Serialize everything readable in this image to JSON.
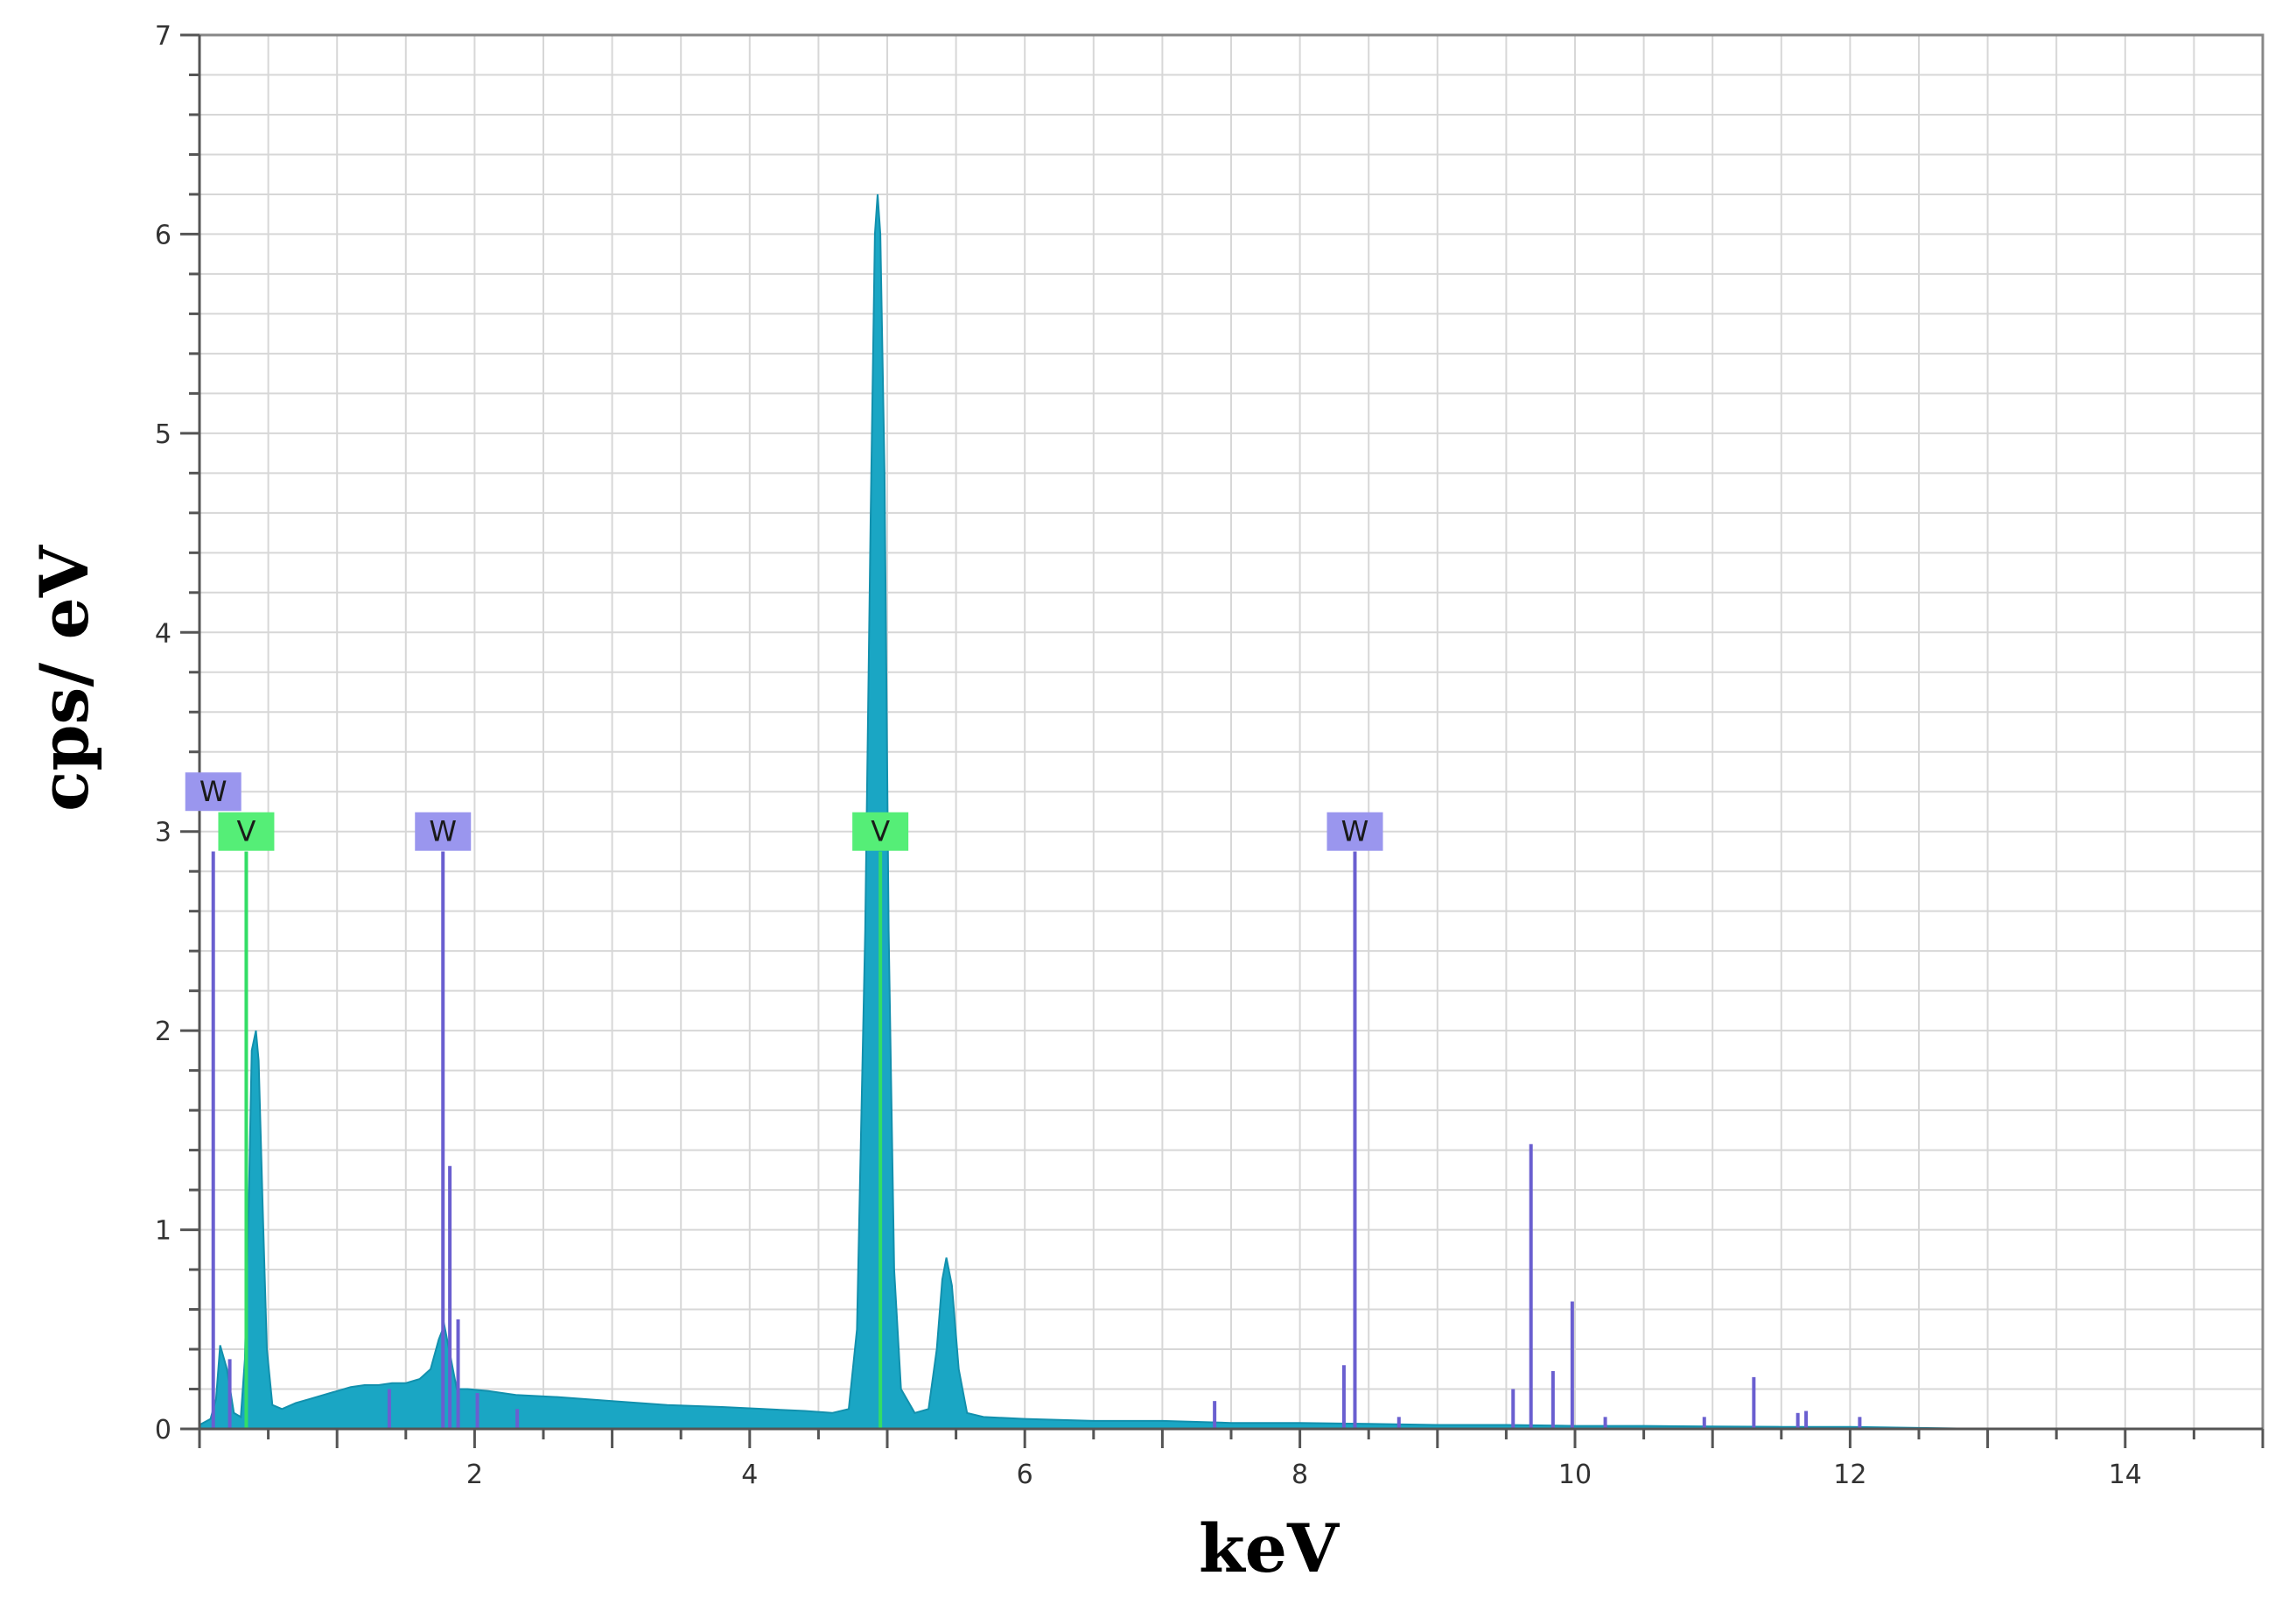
{
  "chart_data": {
    "type": "area",
    "xlabel": "keV",
    "ylabel": "cps/ eV",
    "xlim": [
      0,
      15
    ],
    "ylim": [
      0,
      7
    ],
    "x_ticks": [
      "2",
      "4",
      "6",
      "8",
      "10",
      "12",
      "14"
    ],
    "y_ticks": [
      "0",
      "1",
      "2",
      "3",
      "4",
      "5",
      "6",
      "7"
    ],
    "grid": true,
    "series": [
      {
        "fill_color": "#1aa6c4",
        "points": [
          [
            0.0,
            0.02
          ],
          [
            0.08,
            0.05
          ],
          [
            0.12,
            0.15
          ],
          [
            0.15,
            0.42
          ],
          [
            0.2,
            0.3
          ],
          [
            0.25,
            0.08
          ],
          [
            0.3,
            0.06
          ],
          [
            0.33,
            0.35
          ],
          [
            0.36,
            1.2
          ],
          [
            0.38,
            1.9
          ],
          [
            0.41,
            2.0
          ],
          [
            0.43,
            1.85
          ],
          [
            0.46,
            1.1
          ],
          [
            0.49,
            0.4
          ],
          [
            0.53,
            0.12
          ],
          [
            0.6,
            0.1
          ],
          [
            0.7,
            0.13
          ],
          [
            0.8,
            0.15
          ],
          [
            0.9,
            0.17
          ],
          [
            1.0,
            0.19
          ],
          [
            1.1,
            0.21
          ],
          [
            1.2,
            0.22
          ],
          [
            1.3,
            0.22
          ],
          [
            1.4,
            0.23
          ],
          [
            1.5,
            0.23
          ],
          [
            1.6,
            0.25
          ],
          [
            1.68,
            0.3
          ],
          [
            1.74,
            0.45
          ],
          [
            1.78,
            0.52
          ],
          [
            1.82,
            0.38
          ],
          [
            1.87,
            0.2
          ],
          [
            1.95,
            0.2
          ],
          [
            2.1,
            0.19
          ],
          [
            2.3,
            0.17
          ],
          [
            2.6,
            0.16
          ],
          [
            3.0,
            0.14
          ],
          [
            3.4,
            0.12
          ],
          [
            3.8,
            0.11
          ],
          [
            4.1,
            0.1
          ],
          [
            4.4,
            0.09
          ],
          [
            4.6,
            0.08
          ],
          [
            4.72,
            0.1
          ],
          [
            4.78,
            0.5
          ],
          [
            4.84,
            2.5
          ],
          [
            4.88,
            4.6
          ],
          [
            4.91,
            6.0
          ],
          [
            4.93,
            6.2
          ],
          [
            4.95,
            6.0
          ],
          [
            4.98,
            4.8
          ],
          [
            5.01,
            2.5
          ],
          [
            5.05,
            0.8
          ],
          [
            5.1,
            0.2
          ],
          [
            5.2,
            0.08
          ],
          [
            5.3,
            0.1
          ],
          [
            5.36,
            0.4
          ],
          [
            5.4,
            0.75
          ],
          [
            5.43,
            0.86
          ],
          [
            5.47,
            0.72
          ],
          [
            5.52,
            0.3
          ],
          [
            5.58,
            0.08
          ],
          [
            5.7,
            0.06
          ],
          [
            6.0,
            0.05
          ],
          [
            6.5,
            0.04
          ],
          [
            7.0,
            0.04
          ],
          [
            7.5,
            0.03
          ],
          [
            8.0,
            0.03
          ],
          [
            8.5,
            0.025
          ],
          [
            9.0,
            0.02
          ],
          [
            9.5,
            0.02
          ],
          [
            10.0,
            0.015
          ],
          [
            10.5,
            0.015
          ],
          [
            11.0,
            0.012
          ],
          [
            11.5,
            0.01
          ],
          [
            12.0,
            0.01
          ],
          [
            12.5,
            0.005
          ],
          [
            13.0,
            0.0
          ]
        ]
      }
    ],
    "element_markers": [
      {
        "label": "W",
        "x": 0.1,
        "height": 2.9,
        "color": "#6a5fd0",
        "label_bg": "#9a96ee",
        "label_y": 3.2
      },
      {
        "label": "V",
        "x": 0.34,
        "height": 2.9,
        "color": "#33dd66",
        "label_bg": "#55ee77",
        "label_y": 3.0
      },
      {
        "label": "W",
        "x": 1.77,
        "height": 2.9,
        "color": "#6a5fd0",
        "label_bg": "#9a96ee",
        "label_y": 3.0
      },
      {
        "label": "V",
        "x": 4.95,
        "height": 2.9,
        "color": "#33dd66",
        "label_bg": "#55ee77",
        "label_y": 3.0
      },
      {
        "label": "W",
        "x": 8.4,
        "height": 2.9,
        "color": "#6a5fd0",
        "label_bg": "#9a96ee",
        "label_y": 3.0
      }
    ],
    "minor_lines": {
      "color": "#6a5fd0",
      "lines": [
        [
          0.22,
          0.35
        ],
        [
          1.82,
          1.32
        ],
        [
          1.88,
          0.55
        ],
        [
          1.38,
          0.2
        ],
        [
          2.02,
          0.18
        ],
        [
          2.31,
          0.1
        ],
        [
          7.38,
          0.14
        ],
        [
          8.32,
          0.32
        ],
        [
          8.72,
          0.06
        ],
        [
          9.55,
          0.2
        ],
        [
          9.68,
          1.43
        ],
        [
          9.84,
          0.29
        ],
        [
          9.98,
          0.64
        ],
        [
          10.22,
          0.06
        ],
        [
          10.94,
          0.06
        ],
        [
          11.3,
          0.26
        ],
        [
          11.62,
          0.08
        ],
        [
          11.68,
          0.09
        ],
        [
          12.07,
          0.06
        ]
      ]
    },
    "colors": {
      "plot_border": "#888888",
      "grid": "#d7d7d7",
      "axis": "#555555"
    }
  }
}
